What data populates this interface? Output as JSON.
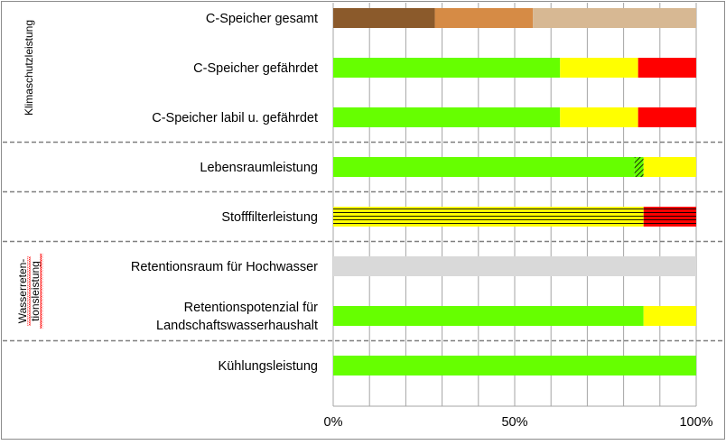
{
  "chart_data": {
    "type": "bar",
    "stacked": true,
    "orientation": "horizontal",
    "xlim": [
      0,
      100
    ],
    "x_ticks": [
      {
        "value": 0,
        "label": "0%"
      },
      {
        "value": 50,
        "label": "50%"
      },
      {
        "value": 100,
        "label": "100%"
      }
    ],
    "grid": true,
    "categories": [
      {
        "id": "c-speicher-gesamt",
        "lines": [
          "C-Speicher gesamt"
        ],
        "segments": [
          {
            "value": 28,
            "color": "#8B5A2B"
          },
          {
            "value": 27,
            "color": "#D68B45"
          },
          {
            "value": 45,
            "color": "#D7B893"
          }
        ]
      },
      {
        "id": "c-speicher-gefaehrdet",
        "lines": [
          "C-Speicher gefährdet"
        ],
        "segments": [
          {
            "value": 62.5,
            "color": "#66FF00"
          },
          {
            "value": 21.5,
            "color": "#FFFF00"
          },
          {
            "value": 16,
            "color": "#FF0000"
          }
        ]
      },
      {
        "id": "c-speicher-labil",
        "lines": [
          "C-Speicher labil u. gefährdet"
        ],
        "segments": [
          {
            "value": 62.5,
            "color": "#66FF00"
          },
          {
            "value": 21.5,
            "color": "#FFFF00"
          },
          {
            "value": 16,
            "color": "#FF0000"
          }
        ]
      },
      {
        "id": "lebensraumleistung",
        "lines": [
          "Lebensraumleistung"
        ],
        "segments": [
          {
            "value": 83,
            "color": "#66FF00"
          },
          {
            "value": 2.5,
            "color": "#66FF00",
            "pattern": "diagonal"
          },
          {
            "value": 14.5,
            "color": "#FFFF00"
          }
        ]
      },
      {
        "id": "stofffilterleistung",
        "lines": [
          "Stofffilterleistung"
        ],
        "segments": [
          {
            "value": 85.5,
            "color": "#FFFF00",
            "pattern": "horizontal"
          },
          {
            "value": 14.5,
            "color": "#FF0000",
            "pattern": "horizontal"
          }
        ]
      },
      {
        "id": "retentionsraum",
        "lines": [
          "Retentionsraum für Hochwasser"
        ],
        "segments": [
          {
            "value": 100,
            "color": "#D9D9D9"
          }
        ]
      },
      {
        "id": "retentionspotenzial",
        "lines": [
          "Retentionspotenzial für",
          "Landschaftswasserhaushalt"
        ],
        "segments": [
          {
            "value": 85.5,
            "color": "#66FF00"
          },
          {
            "value": 14.5,
            "color": "#FFFF00"
          }
        ]
      },
      {
        "id": "kuehlungsleistung",
        "lines": [
          "Kühlungsleistung"
        ],
        "segments": [
          {
            "value": 100,
            "color": "#66FF00"
          }
        ]
      }
    ],
    "groups": [
      {
        "id": "klimaschutzleistung",
        "lines": [
          "Klimaschutzleistung"
        ],
        "from": 0,
        "to": 2
      },
      {
        "id": "wasserretentionsleistung",
        "lines": [
          "Wasserreten-",
          "tionsleistung"
        ],
        "from": 5,
        "to": 6,
        "spellcheck_underline": true
      }
    ],
    "separators_after": [
      2,
      3,
      4,
      6
    ]
  }
}
